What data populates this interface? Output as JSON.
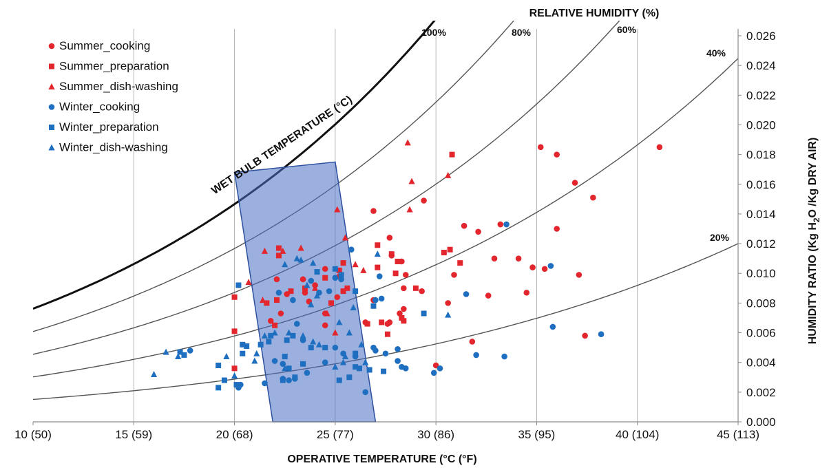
{
  "chart_data": {
    "type": "scatter",
    "title": "",
    "xlabel": "OPERATIVE TEMPERATURE (°C (°F)",
    "ylabel_parts": [
      "HUMIDITY RATIO (Kg H",
      "2",
      "O /Kg DRY AIR)"
    ],
    "top_label": "RELATIVE HUMIDITY (%)",
    "wet_bulb_label": "WET BULB TEMPERATURE (°C)",
    "xlim": [
      10,
      45
    ],
    "ylim": [
      0.0,
      0.026
    ],
    "x_ticks": [
      {
        "value": 10,
        "label": "10 (50)"
      },
      {
        "value": 15,
        "label": "15 (59)"
      },
      {
        "value": 20,
        "label": "20 (68)"
      },
      {
        "value": 25,
        "label": "25 (77)"
      },
      {
        "value": 30,
        "label": "30 (86)"
      },
      {
        "value": 35,
        "label": "35 (95)"
      },
      {
        "value": 40,
        "label": "40 (104)"
      },
      {
        "value": 45,
        "label": "45 (113)"
      }
    ],
    "y_ticks": [
      {
        "value": 0.0,
        "label": "0.000"
      },
      {
        "value": 0.002,
        "label": "0.002"
      },
      {
        "value": 0.004,
        "label": "0.004"
      },
      {
        "value": 0.006,
        "label": "0.006"
      },
      {
        "value": 0.008,
        "label": "0.008"
      },
      {
        "value": 0.01,
        "label": "0.010"
      },
      {
        "value": 0.012,
        "label": "0.012"
      },
      {
        "value": 0.014,
        "label": "0.014"
      },
      {
        "value": 0.016,
        "label": "0.016"
      },
      {
        "value": 0.018,
        "label": "0.018"
      },
      {
        "value": 0.02,
        "label": "0.020"
      },
      {
        "value": 0.022,
        "label": "0.022"
      },
      {
        "value": 0.024,
        "label": "0.024"
      },
      {
        "value": 0.026,
        "label": "0.026"
      }
    ],
    "grid": "vertical",
    "legend_position": "top-left",
    "rh_curves": [
      {
        "rh": 100,
        "label": "100%",
        "bold": true
      },
      {
        "rh": 80,
        "label": "80%",
        "bold": false
      },
      {
        "rh": 60,
        "label": "60%",
        "bold": false
      },
      {
        "rh": 40,
        "label": "40%",
        "bold": false
      },
      {
        "rh": 20,
        "label": "20%",
        "bold": false
      }
    ],
    "comfort_zone": {
      "color": "#4a6fc4",
      "corners": [
        [
          20.0,
          0.0168
        ],
        [
          25.0,
          0.0175
        ],
        [
          27.0,
          0.0
        ],
        [
          21.9,
          0.0
        ]
      ]
    },
    "series": [
      {
        "name": "Summer_cooking",
        "marker": "circle",
        "color": "#e3262d",
        "points": [
          [
            26.9,
            0.0142
          ],
          [
            29.4,
            0.0149
          ],
          [
            27.7,
            0.0124
          ],
          [
            31.4,
            0.0132
          ],
          [
            32.1,
            0.0128
          ],
          [
            33.2,
            0.0133
          ],
          [
            35.2,
            0.0185
          ],
          [
            36.0,
            0.018
          ],
          [
            36.9,
            0.0161
          ],
          [
            37.8,
            0.0151
          ],
          [
            36.0,
            0.013
          ],
          [
            41.1,
            0.0185
          ],
          [
            32.9,
            0.011
          ],
          [
            34.1,
            0.011
          ],
          [
            34.8,
            0.0104
          ],
          [
            35.4,
            0.0103
          ],
          [
            37.1,
            0.0099
          ],
          [
            30.9,
            0.0099
          ],
          [
            34.5,
            0.0087
          ],
          [
            32.6,
            0.0085
          ],
          [
            30.6,
            0.008
          ],
          [
            29.3,
            0.0088
          ],
          [
            28.4,
            0.009
          ],
          [
            26.9,
            0.0082
          ],
          [
            28.4,
            0.0076
          ],
          [
            28.2,
            0.0073
          ],
          [
            27.6,
            0.0066
          ],
          [
            27.7,
            0.0067
          ],
          [
            26.5,
            0.0067
          ],
          [
            31.8,
            0.0054
          ],
          [
            30.0,
            0.0038
          ],
          [
            37.4,
            0.0058
          ],
          [
            27.8,
            0.0112
          ],
          [
            28.5,
            0.0099
          ],
          [
            28.3,
            0.0108
          ],
          [
            24.5,
            0.0103
          ],
          [
            25.2,
            0.0098
          ],
          [
            25.1,
            0.0084
          ],
          [
            24.0,
            0.0092
          ],
          [
            23.4,
            0.0096
          ],
          [
            23.5,
            0.0087
          ],
          [
            22.6,
            0.0086
          ],
          [
            23.7,
            0.0081
          ],
          [
            24.5,
            0.0073
          ],
          [
            22.3,
            0.0073
          ],
          [
            24.5,
            0.0065
          ],
          [
            21.8,
            0.0068
          ],
          [
            22.1,
            0.0096
          ]
        ]
      },
      {
        "name": "Summer_preparation",
        "marker": "square",
        "color": "#e3262d",
        "points": [
          [
            30.8,
            0.018
          ],
          [
            27.1,
            0.0119
          ],
          [
            27.8,
            0.0113
          ],
          [
            30.4,
            0.0114
          ],
          [
            30.7,
            0.0116
          ],
          [
            31.2,
            0.0107
          ],
          [
            27.1,
            0.0104
          ],
          [
            28.0,
            0.01
          ],
          [
            28.1,
            0.0108
          ],
          [
            29.0,
            0.009
          ],
          [
            28.3,
            0.007
          ],
          [
            28.4,
            0.0068
          ],
          [
            27.3,
            0.0067
          ],
          [
            27.6,
            0.0059
          ],
          [
            26.6,
            0.0066
          ],
          [
            20.0,
            0.0084
          ],
          [
            20.0,
            0.0061
          ],
          [
            20.0,
            0.0036
          ],
          [
            22.2,
            0.0117
          ],
          [
            22.2,
            0.0112
          ],
          [
            25.4,
            0.0107
          ],
          [
            25.2,
            0.0102
          ],
          [
            24.5,
            0.0097
          ],
          [
            23.5,
            0.009
          ],
          [
            22.8,
            0.0088
          ],
          [
            22.1,
            0.0082
          ],
          [
            21.6,
            0.008
          ],
          [
            25.6,
            0.009
          ],
          [
            25.4,
            0.0088
          ],
          [
            24.8,
            0.008
          ],
          [
            22.0,
            0.0065
          ]
        ]
      },
      {
        "name": "Summer_dish-washing",
        "marker": "triangle",
        "color": "#e3262d",
        "points": [
          [
            28.6,
            0.0188
          ],
          [
            28.8,
            0.0162
          ],
          [
            30.6,
            0.0166
          ],
          [
            28.7,
            0.0143
          ],
          [
            25.1,
            0.0143
          ],
          [
            25.5,
            0.0124
          ],
          [
            21.5,
            0.0115
          ],
          [
            26.0,
            0.0106
          ],
          [
            26.4,
            0.0102
          ],
          [
            20.7,
            0.0094
          ],
          [
            21.4,
            0.0082
          ],
          [
            22.4,
            0.0115
          ],
          [
            23.3,
            0.0117
          ],
          [
            24.0,
            0.009
          ],
          [
            24.6,
            0.0073
          ],
          [
            25.0,
            0.006
          ]
        ]
      },
      {
        "name": "Winter_cooking",
        "marker": "circle",
        "color": "#1f6fc0",
        "points": [
          [
            25.8,
            0.0116
          ],
          [
            27.2,
            0.0098
          ],
          [
            27.0,
            0.0082
          ],
          [
            27.3,
            0.0083
          ],
          [
            31.5,
            0.0086
          ],
          [
            33.5,
            0.0133
          ],
          [
            35.7,
            0.0105
          ],
          [
            35.8,
            0.0064
          ],
          [
            38.2,
            0.0059
          ],
          [
            32.0,
            0.0045
          ],
          [
            33.4,
            0.0044
          ],
          [
            30.2,
            0.0036
          ],
          [
            29.9,
            0.0033
          ],
          [
            28.1,
            0.0049
          ],
          [
            28.1,
            0.0041
          ],
          [
            27.5,
            0.0046
          ],
          [
            27.0,
            0.0048
          ],
          [
            26.9,
            0.005
          ],
          [
            26.5,
            0.002
          ],
          [
            28.3,
            0.0037
          ],
          [
            28.5,
            0.0036
          ],
          [
            17.8,
            0.0048
          ],
          [
            20.2,
            0.0023
          ],
          [
            20.3,
            0.0025
          ],
          [
            21.5,
            0.0026
          ],
          [
            22.0,
            0.0041
          ],
          [
            22.4,
            0.0039
          ],
          [
            22.4,
            0.0029
          ],
          [
            22.7,
            0.0028
          ],
          [
            23.0,
            0.0029
          ],
          [
            23.6,
            0.0033
          ],
          [
            24.5,
            0.004
          ],
          [
            23.4,
            0.0055
          ],
          [
            25.0,
            0.005
          ],
          [
            25.4,
            0.0046
          ],
          [
            26.0,
            0.0044
          ],
          [
            23.1,
            0.0066
          ],
          [
            24.7,
            0.0088
          ],
          [
            24.2,
            0.0087
          ],
          [
            22.9,
            0.0082
          ],
          [
            22.2,
            0.0087
          ],
          [
            23.8,
            0.0095
          ],
          [
            25.0,
            0.0097
          ],
          [
            25.3,
            0.0096
          ]
        ]
      },
      {
        "name": "Winter_preparation",
        "marker": "square",
        "color": "#1f6fc0",
        "points": [
          [
            20.2,
            0.0092
          ],
          [
            20.4,
            0.0052
          ],
          [
            20.4,
            0.0046
          ],
          [
            20.6,
            0.0051
          ],
          [
            19.2,
            0.0038
          ],
          [
            17.5,
            0.0045
          ],
          [
            17.3,
            0.0047
          ],
          [
            19.2,
            0.0023
          ],
          [
            19.5,
            0.0028
          ],
          [
            20.1,
            0.0025
          ],
          [
            21.3,
            0.0052
          ],
          [
            21.8,
            0.0058
          ],
          [
            22.5,
            0.0044
          ],
          [
            22.7,
            0.0036
          ],
          [
            22.4,
            0.0028
          ],
          [
            23.0,
            0.003
          ],
          [
            23.4,
            0.0039
          ],
          [
            23.8,
            0.005
          ],
          [
            24.5,
            0.005
          ],
          [
            25.2,
            0.0028
          ],
          [
            25.7,
            0.003
          ],
          [
            26.0,
            0.0037
          ],
          [
            26.0,
            0.0046
          ],
          [
            26.2,
            0.0036
          ],
          [
            26.7,
            0.0035
          ],
          [
            26.9,
            0.0078
          ],
          [
            27.4,
            0.0034
          ],
          [
            25.3,
            0.0099
          ],
          [
            26.0,
            0.0088
          ],
          [
            25.0,
            0.0103
          ],
          [
            24.1,
            0.0101
          ],
          [
            29.4,
            0.0073
          ],
          [
            22.6,
            0.0055
          ],
          [
            21.7,
            0.0054
          ],
          [
            22.9,
            0.0058
          ]
        ]
      },
      {
        "name": "Winter_dish-washing",
        "marker": "triangle",
        "color": "#1f6fc0",
        "points": [
          [
            16.0,
            0.0032
          ],
          [
            16.6,
            0.0047
          ],
          [
            17.2,
            0.0044
          ],
          [
            19.6,
            0.0044
          ],
          [
            20.0,
            0.0031
          ],
          [
            21.0,
            0.0041
          ],
          [
            21.1,
            0.0046
          ],
          [
            21.5,
            0.0058
          ],
          [
            22.0,
            0.006
          ],
          [
            22.5,
            0.0036
          ],
          [
            22.7,
            0.006
          ],
          [
            23.4,
            0.0058
          ],
          [
            23.9,
            0.0054
          ],
          [
            24.2,
            0.0052
          ],
          [
            25.0,
            0.0037
          ],
          [
            25.4,
            0.004
          ],
          [
            25.5,
            0.0044
          ],
          [
            26.0,
            0.0046
          ],
          [
            26.3,
            0.0052
          ],
          [
            25.9,
            0.0077
          ],
          [
            25.2,
            0.0067
          ],
          [
            24.1,
            0.0085
          ],
          [
            23.8,
            0.0079
          ],
          [
            23.6,
            0.0092
          ],
          [
            23.9,
            0.0107
          ],
          [
            23.3,
            0.0109
          ],
          [
            22.5,
            0.0106
          ],
          [
            23.1,
            0.011
          ],
          [
            27.1,
            0.0113
          ],
          [
            30.6,
            0.0072
          ],
          [
            26.5,
            0.004
          ],
          [
            25.7,
            0.006
          ]
        ]
      }
    ]
  }
}
